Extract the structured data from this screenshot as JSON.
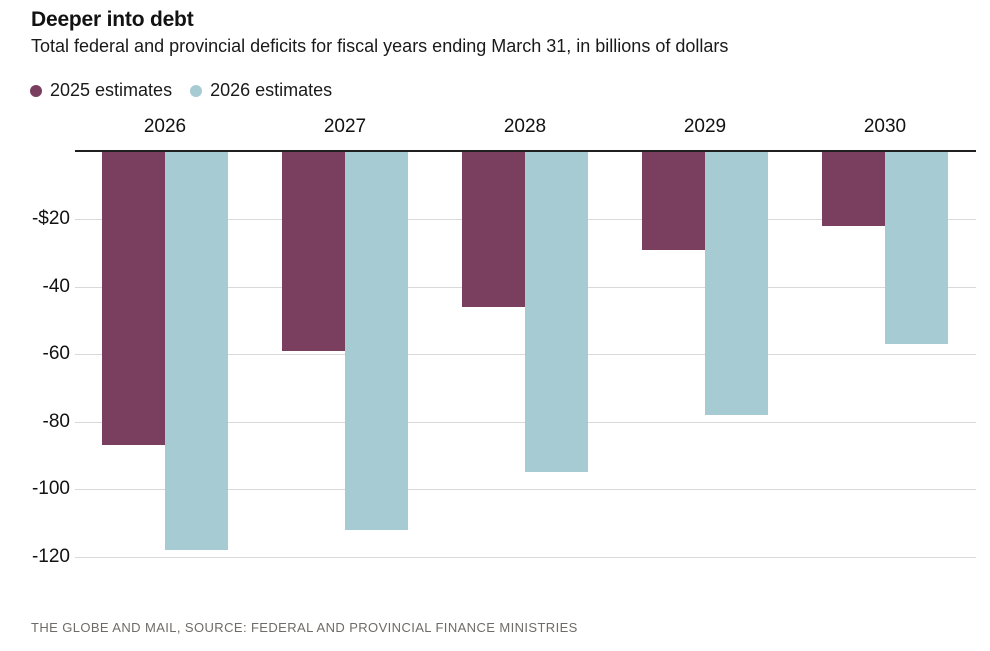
{
  "header": {
    "title": "Deeper into debt",
    "subtitle": "Total federal and provincial deficits for fiscal years ending March 31, in billions of dollars"
  },
  "legend": [
    {
      "label": "2025 estimates",
      "color": "#7a3f5f"
    },
    {
      "label": "2026 estimates",
      "color": "#a7cbd3"
    }
  ],
  "chart_data": {
    "type": "bar",
    "title": "Deeper into debt",
    "subtitle": "Total federal and provincial deficits for fiscal years ending March 31, in billions of dollars",
    "units": "billions of dollars",
    "categories": [
      "2026",
      "2027",
      "2028",
      "2029",
      "2030"
    ],
    "series": [
      {
        "name": "2025 estimates",
        "color": "#7a3f5f",
        "values": [
          -87,
          -59,
          -46,
          -29,
          -22
        ]
      },
      {
        "name": "2026 estimates",
        "color": "#a7cbd3",
        "values": [
          -118,
          -112,
          -95,
          -78,
          -57
        ]
      }
    ],
    "xlabel": "",
    "ylabel": "",
    "ylim": [
      -130,
      0
    ],
    "grid": true,
    "legend_position": "top-left",
    "category_labels_position": "top",
    "y_ticks": [
      {
        "value": -20,
        "label": "-$20"
      },
      {
        "value": -40,
        "label": "-40"
      },
      {
        "value": -60,
        "label": "-60"
      },
      {
        "value": -80,
        "label": "-80"
      },
      {
        "value": -100,
        "label": "-100"
      },
      {
        "value": -120,
        "label": "-120"
      }
    ],
    "colors": {
      "zero_line": "#1f1f1f",
      "gridline": "#d9d9d9"
    }
  },
  "footer": {
    "credit": "THE GLOBE AND MAIL, SOURCE: FEDERAL AND PROVINCIAL FINANCE MINISTRIES"
  }
}
